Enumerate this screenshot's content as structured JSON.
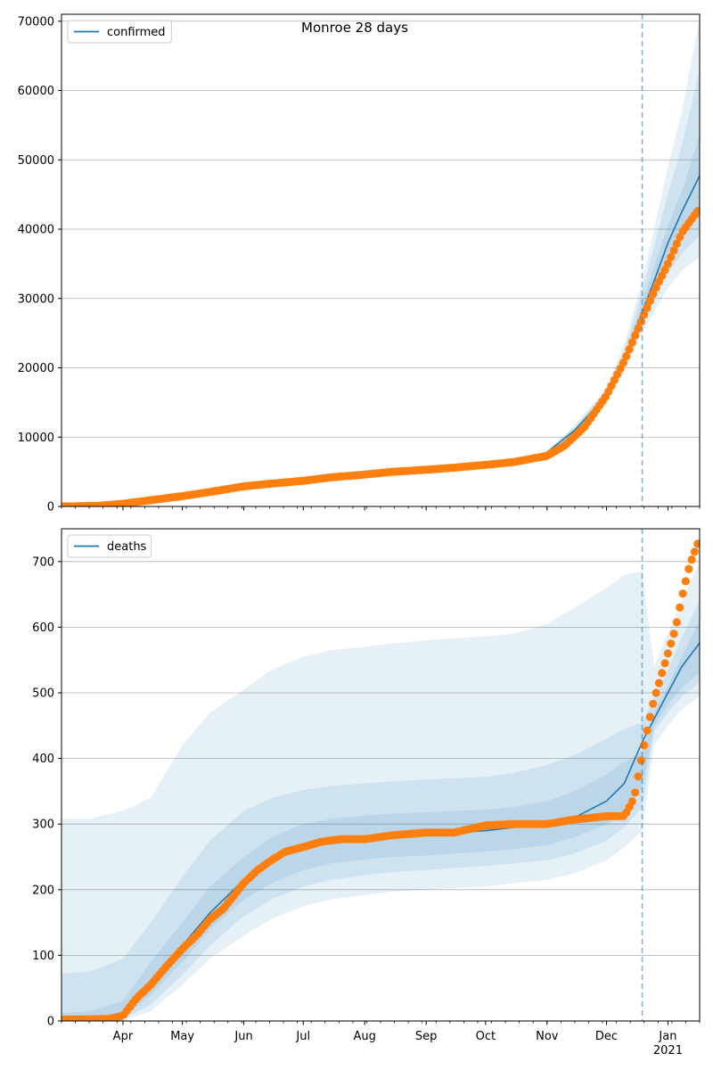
{
  "title": "Monroe 28 days",
  "colors": {
    "model": "#1f77b4",
    "observed": "#ff7f0e",
    "band": "#1f77b4",
    "grid": "#b0b0b0",
    "cutoff": "#1f77b4"
  },
  "chart_data": [
    {
      "type": "line",
      "panel": "top",
      "legend": "confirmed",
      "legend_position": "top-left",
      "grid": "horizontal",
      "x_range": [
        "2020-03-01",
        "2021-01-17"
      ],
      "ylim": [
        0,
        71000
      ],
      "yticks": [
        0,
        10000,
        20000,
        30000,
        40000,
        50000,
        60000,
        70000
      ],
      "cutoff_date": "2020-12-19",
      "model": {
        "x": [
          "2020-03-01",
          "2020-04-01",
          "2020-05-01",
          "2020-06-01",
          "2020-07-01",
          "2020-08-01",
          "2020-09-01",
          "2020-10-01",
          "2020-10-15",
          "2020-11-01",
          "2020-11-15",
          "2020-12-01",
          "2020-12-10",
          "2020-12-19",
          "2020-12-25",
          "2021-01-01",
          "2021-01-08",
          "2021-01-17"
        ],
        "y": [
          0,
          300,
          1400,
          3000,
          3900,
          4700,
          5400,
          6000,
          6500,
          7800,
          11000,
          16000,
          21000,
          28000,
          32500,
          38000,
          42500,
          47700
        ]
      },
      "bands": [
        {
          "x": [
            "2020-11-01",
            "2020-11-15",
            "2020-12-01",
            "2020-12-10",
            "2020-12-19",
            "2020-12-25",
            "2021-01-01",
            "2021-01-08",
            "2021-01-17"
          ],
          "lower": [
            7600,
            10400,
            15000,
            19500,
            25000,
            28000,
            31500,
            34000,
            36000
          ],
          "upper": [
            8000,
            11700,
            17200,
            23500,
            32500,
            40000,
            49000,
            57000,
            70500
          ]
        },
        {
          "x": [
            "2020-11-01",
            "2020-11-15",
            "2020-12-01",
            "2020-12-10",
            "2020-12-19",
            "2020-12-25",
            "2021-01-01",
            "2021-01-08",
            "2021-01-17"
          ],
          "lower": [
            7650,
            10600,
            15300,
            20000,
            26000,
            29500,
            33500,
            36500,
            39000
          ],
          "upper": [
            7950,
            11500,
            16800,
            22500,
            31000,
            37500,
            45000,
            52000,
            63000
          ]
        },
        {
          "x": [
            "2020-11-01",
            "2020-11-15",
            "2020-12-01",
            "2020-12-10",
            "2020-12-19",
            "2020-12-25",
            "2021-01-01",
            "2021-01-08",
            "2021-01-17"
          ],
          "lower": [
            7700,
            10800,
            15600,
            20500,
            27000,
            31000,
            35500,
            39000,
            42000
          ],
          "upper": [
            7900,
            11200,
            16400,
            21700,
            29500,
            34500,
            40500,
            45500,
            53500
          ]
        }
      ],
      "observed": {
        "x": [
          "2020-03-01",
          "2020-03-20",
          "2020-04-01",
          "2020-04-15",
          "2020-05-01",
          "2020-05-15",
          "2020-06-01",
          "2020-06-15",
          "2020-07-01",
          "2020-07-15",
          "2020-08-01",
          "2020-08-15",
          "2020-09-01",
          "2020-09-15",
          "2020-10-01",
          "2020-10-15",
          "2020-11-01",
          "2020-11-10",
          "2020-11-20",
          "2020-12-01",
          "2020-12-10",
          "2020-12-19",
          "2020-12-25",
          "2021-01-01",
          "2021-01-08",
          "2021-01-17"
        ],
        "y": [
          0,
          100,
          400,
          900,
          1500,
          2100,
          2900,
          3300,
          3700,
          4200,
          4600,
          5000,
          5300,
          5600,
          6000,
          6400,
          7300,
          8800,
          11500,
          16000,
          21000,
          27000,
          31000,
          35000,
          39500,
          43000
        ]
      }
    },
    {
      "type": "line",
      "panel": "bottom",
      "legend": "deaths",
      "legend_position": "top-left",
      "grid": "horizontal",
      "x_range": [
        "2020-03-01",
        "2021-01-17"
      ],
      "ylim": [
        0,
        750
      ],
      "yticks": [
        0,
        100,
        200,
        300,
        400,
        500,
        600,
        700
      ],
      "xtick_labels": [
        "Apr",
        "May",
        "Jun",
        "Jul",
        "Aug",
        "Sep",
        "Oct",
        "Nov",
        "Dec",
        "Jan\n2021"
      ],
      "cutoff_date": "2020-12-19",
      "model": {
        "x": [
          "2020-03-01",
          "2020-03-20",
          "2020-04-01",
          "2020-04-15",
          "2020-05-01",
          "2020-05-15",
          "2020-06-01",
          "2020-06-15",
          "2020-07-01",
          "2020-07-15",
          "2020-08-01",
          "2020-08-15",
          "2020-09-01",
          "2020-09-15",
          "2020-10-01",
          "2020-10-15",
          "2020-11-01",
          "2020-11-15",
          "2020-12-01",
          "2020-12-10",
          "2020-12-19",
          "2020-12-25",
          "2021-01-01",
          "2021-01-08",
          "2021-01-17"
        ],
        "y": [
          0,
          2,
          12,
          60,
          115,
          165,
          215,
          250,
          268,
          276,
          280,
          283,
          285,
          287,
          290,
          295,
          300,
          310,
          335,
          362,
          425,
          460,
          500,
          540,
          576
        ]
      },
      "bands": [
        {
          "x": [
            "2020-03-01",
            "2020-03-15",
            "2020-04-01",
            "2020-04-15",
            "2020-05-01",
            "2020-05-15",
            "2020-06-01",
            "2020-06-15",
            "2020-07-01",
            "2020-07-15",
            "2020-08-01",
            "2020-08-15",
            "2020-09-01",
            "2020-09-15",
            "2020-10-01",
            "2020-10-15",
            "2020-11-01",
            "2020-11-15",
            "2020-12-01",
            "2020-12-10",
            "2020-12-19",
            "2020-12-25",
            "2021-01-01",
            "2021-01-08",
            "2021-01-17"
          ],
          "lower": [
            0,
            0,
            0,
            15,
            55,
            95,
            130,
            155,
            175,
            185,
            192,
            197,
            200,
            203,
            205,
            210,
            215,
            225,
            245,
            265,
            290,
            420,
            450,
            475,
            495
          ],
          "upper": [
            308,
            308,
            320,
            340,
            420,
            470,
            505,
            535,
            555,
            565,
            570,
            575,
            580,
            583,
            586,
            590,
            605,
            630,
            660,
            680,
            685,
            540,
            590,
            640,
            700
          ]
        },
        {
          "x": [
            "2020-03-01",
            "2020-03-15",
            "2020-04-01",
            "2020-04-15",
            "2020-05-01",
            "2020-05-15",
            "2020-06-01",
            "2020-06-15",
            "2020-07-01",
            "2020-07-15",
            "2020-08-01",
            "2020-08-15",
            "2020-09-01",
            "2020-09-15",
            "2020-10-01",
            "2020-10-15",
            "2020-11-01",
            "2020-11-15",
            "2020-12-01",
            "2020-12-10",
            "2020-12-19",
            "2020-12-25",
            "2021-01-01",
            "2021-01-08",
            "2021-01-17"
          ],
          "lower": [
            0,
            0,
            2,
            25,
            70,
            115,
            160,
            185,
            205,
            215,
            222,
            227,
            230,
            233,
            236,
            240,
            245,
            255,
            275,
            295,
            325,
            440,
            470,
            495,
            515
          ],
          "upper": [
            72,
            75,
            95,
            150,
            220,
            275,
            320,
            340,
            352,
            358,
            362,
            365,
            368,
            370,
            372,
            378,
            390,
            405,
            430,
            445,
            455,
            490,
            535,
            585,
            640
          ]
        },
        {
          "x": [
            "2020-03-01",
            "2020-03-15",
            "2020-04-01",
            "2020-04-15",
            "2020-05-01",
            "2020-05-15",
            "2020-06-01",
            "2020-06-15",
            "2020-07-01",
            "2020-07-15",
            "2020-08-01",
            "2020-08-15",
            "2020-09-01",
            "2020-09-15",
            "2020-10-01",
            "2020-10-15",
            "2020-11-01",
            "2020-11-15",
            "2020-12-01",
            "2020-12-10",
            "2020-12-19",
            "2020-12-25",
            "2021-01-01",
            "2021-01-08",
            "2021-01-17"
          ],
          "lower": [
            0,
            0,
            4,
            40,
            90,
            140,
            185,
            210,
            230,
            240,
            246,
            250,
            252,
            255,
            258,
            262,
            268,
            280,
            300,
            320,
            355,
            448,
            482,
            508,
            530
          ],
          "upper": [
            12,
            15,
            30,
            90,
            150,
            205,
            250,
            280,
            300,
            308,
            313,
            316,
            318,
            320,
            322,
            326,
            335,
            350,
            375,
            395,
            410,
            470,
            510,
            555,
            610
          ]
        }
      ],
      "observed": {
        "x": [
          "2020-03-01",
          "2020-03-25",
          "2020-04-01",
          "2020-04-08",
          "2020-04-15",
          "2020-04-22",
          "2020-05-01",
          "2020-05-08",
          "2020-05-15",
          "2020-05-22",
          "2020-06-01",
          "2020-06-08",
          "2020-06-15",
          "2020-06-22",
          "2020-07-01",
          "2020-07-10",
          "2020-07-20",
          "2020-08-01",
          "2020-08-15",
          "2020-09-01",
          "2020-09-15",
          "2020-10-01",
          "2020-10-15",
          "2020-11-01",
          "2020-11-15",
          "2020-12-01",
          "2020-12-10",
          "2020-12-15",
          "2020-12-19",
          "2020-12-22",
          "2020-12-25",
          "2020-12-29",
          "2021-01-01",
          "2021-01-05",
          "2021-01-08",
          "2021-01-12",
          "2021-01-17"
        ],
        "y": [
          2,
          3,
          8,
          35,
          55,
          80,
          110,
          130,
          155,
          172,
          210,
          230,
          245,
          258,
          265,
          273,
          277,
          277,
          283,
          287,
          287,
          298,
          300,
          300,
          307,
          312,
          312,
          340,
          405,
          450,
          490,
          530,
          560,
          600,
          645,
          695,
          735
        ]
      }
    }
  ]
}
